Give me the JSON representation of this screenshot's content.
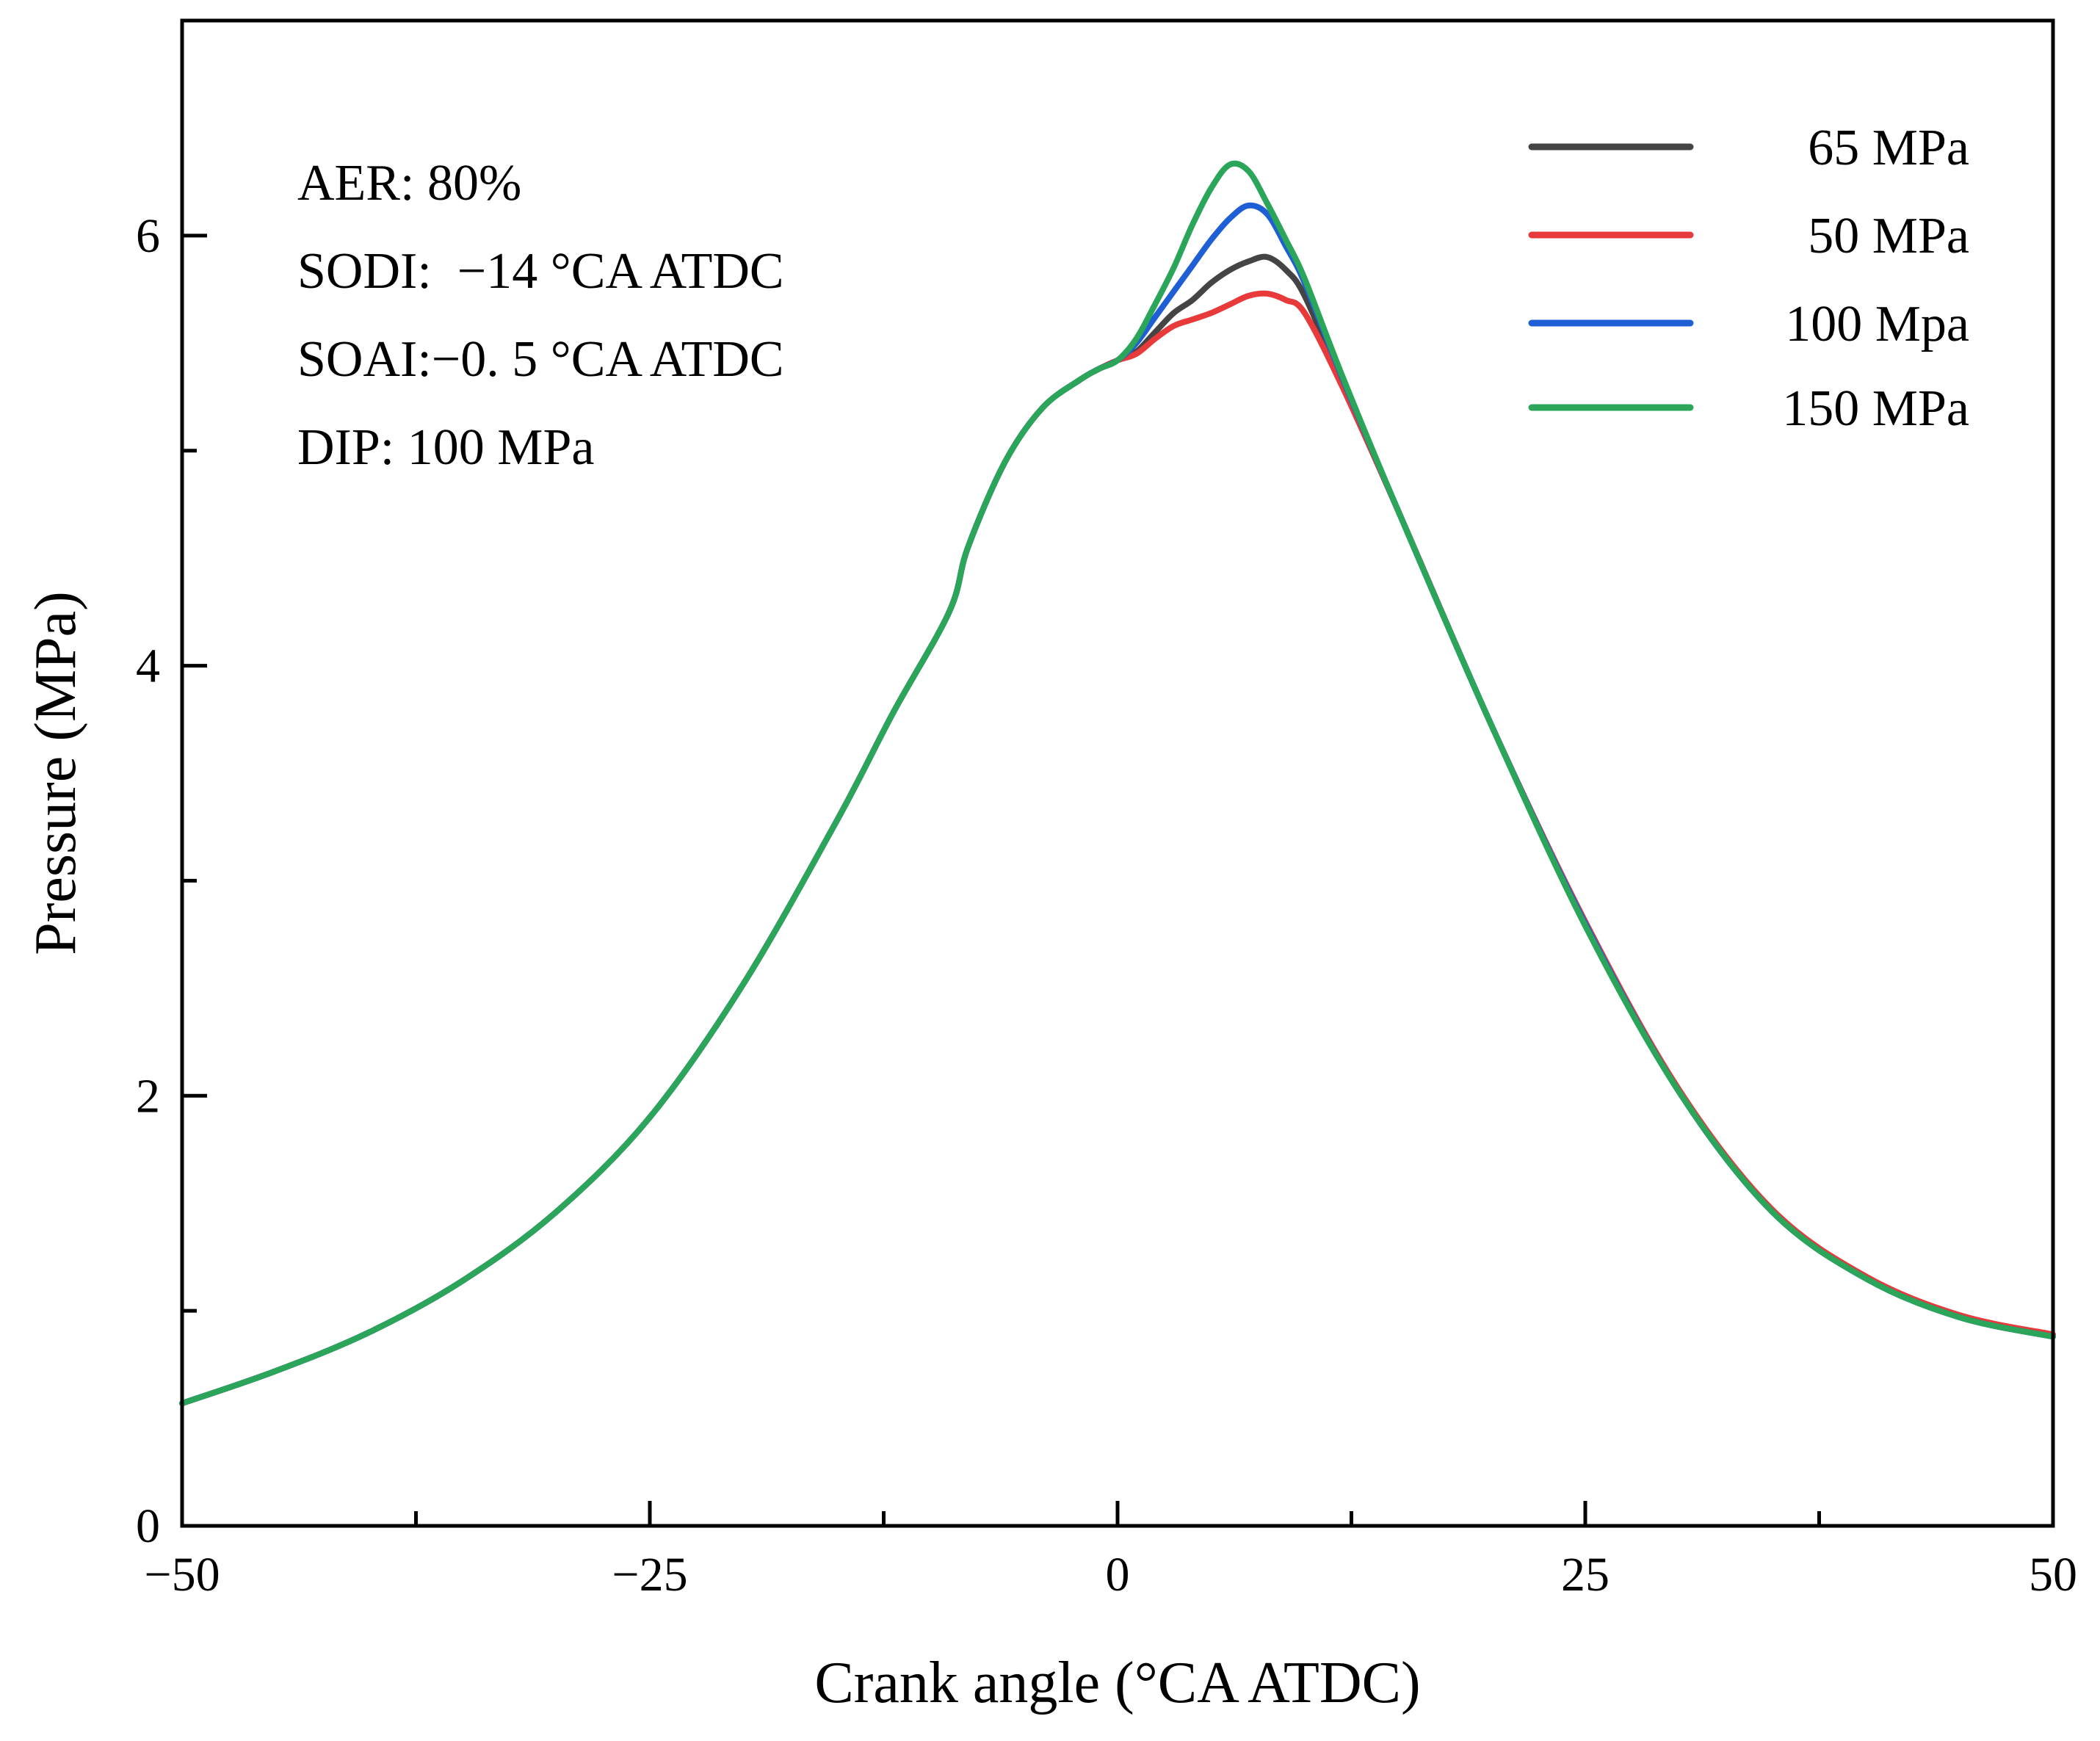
{
  "chart_data": {
    "type": "line",
    "xlabel": "Crank angle (°CA ATDC)",
    "ylabel": "Pressure (MPa)",
    "xlim": [
      -50,
      50
    ],
    "ylim": [
      0,
      7
    ],
    "xticks": [
      -50,
      -25,
      0,
      25,
      50
    ],
    "xtick_labels": [
      "−50",
      "−25",
      "0",
      "25",
      "50"
    ],
    "yticks": [
      0,
      2,
      4,
      6
    ],
    "ytick_labels": [
      "0",
      "2",
      "4",
      "6"
    ],
    "grid": false,
    "legend_position": "top-right",
    "annotations": [
      "AER: 80%",
      "SODI:  −14 °CA ATDC",
      "SOAI:−0. 5 °CA ATDC",
      "DIP: 100 MPa"
    ],
    "series": [
      {
        "name": "65 MPa",
        "color": "#444444",
        "x": [
          -50,
          -45,
          -40,
          -35,
          -30,
          -25,
          -20,
          -15,
          -12,
          -9,
          -8,
          -6,
          -4,
          -2,
          -1,
          0,
          1,
          2,
          3,
          4,
          5,
          6,
          7,
          8,
          9,
          10,
          12,
          15,
          20,
          25,
          30,
          35,
          40,
          45,
          50
        ],
        "y": [
          0.57,
          0.72,
          0.9,
          1.14,
          1.46,
          1.9,
          2.52,
          3.28,
          3.78,
          4.25,
          4.55,
          4.95,
          5.2,
          5.33,
          5.38,
          5.42,
          5.46,
          5.55,
          5.64,
          5.7,
          5.78,
          5.84,
          5.88,
          5.9,
          5.84,
          5.72,
          5.32,
          4.72,
          3.72,
          2.8,
          2.02,
          1.46,
          1.15,
          0.97,
          0.88
        ]
      },
      {
        "name": "50 MPa",
        "color": "#e8393b",
        "x": [
          -50,
          -45,
          -40,
          -35,
          -30,
          -25,
          -20,
          -15,
          -12,
          -9,
          -8,
          -6,
          -4,
          -2,
          -1,
          0,
          1,
          2,
          3,
          4,
          5,
          6,
          7,
          8,
          9,
          10,
          12,
          15,
          20,
          25,
          30,
          35,
          40,
          45,
          50
        ],
        "y": [
          0.57,
          0.72,
          0.9,
          1.14,
          1.46,
          1.9,
          2.52,
          3.28,
          3.78,
          4.25,
          4.55,
          4.95,
          5.2,
          5.33,
          5.38,
          5.42,
          5.45,
          5.52,
          5.58,
          5.61,
          5.64,
          5.68,
          5.72,
          5.73,
          5.7,
          5.64,
          5.3,
          4.72,
          3.72,
          2.81,
          2.03,
          1.47,
          1.16,
          0.98,
          0.89
        ]
      },
      {
        "name": "100 Mpa",
        "color": "#1f5fd6",
        "x": [
          -50,
          -45,
          -40,
          -35,
          -30,
          -25,
          -20,
          -15,
          -12,
          -9,
          -8,
          -6,
          -4,
          -2,
          -1,
          0,
          1,
          2,
          3,
          4,
          5,
          6,
          7,
          8,
          9,
          10,
          12,
          15,
          20,
          25,
          30,
          35,
          40,
          45,
          50
        ],
        "y": [
          0.57,
          0.72,
          0.9,
          1.14,
          1.46,
          1.9,
          2.52,
          3.28,
          3.78,
          4.25,
          4.55,
          4.95,
          5.2,
          5.33,
          5.38,
          5.42,
          5.5,
          5.62,
          5.74,
          5.86,
          5.98,
          6.08,
          6.14,
          6.1,
          5.95,
          5.78,
          5.34,
          4.72,
          3.72,
          2.8,
          2.02,
          1.46,
          1.15,
          0.97,
          0.88
        ]
      },
      {
        "name": "150 MPa",
        "color": "#2aa55a",
        "x": [
          -50,
          -45,
          -40,
          -35,
          -30,
          -25,
          -20,
          -15,
          -12,
          -9,
          -8,
          -6,
          -4,
          -2,
          -1,
          0,
          1,
          2,
          3,
          4,
          5,
          6,
          7,
          8,
          9,
          10,
          12,
          15,
          20,
          25,
          30,
          35,
          40,
          45,
          50
        ],
        "y": [
          0.57,
          0.72,
          0.9,
          1.14,
          1.46,
          1.9,
          2.52,
          3.28,
          3.78,
          4.25,
          4.55,
          4.95,
          5.2,
          5.33,
          5.38,
          5.42,
          5.52,
          5.68,
          5.85,
          6.05,
          6.22,
          6.33,
          6.3,
          6.15,
          5.98,
          5.8,
          5.35,
          4.72,
          3.72,
          2.79,
          2.02,
          1.46,
          1.15,
          0.97,
          0.88
        ]
      }
    ]
  }
}
